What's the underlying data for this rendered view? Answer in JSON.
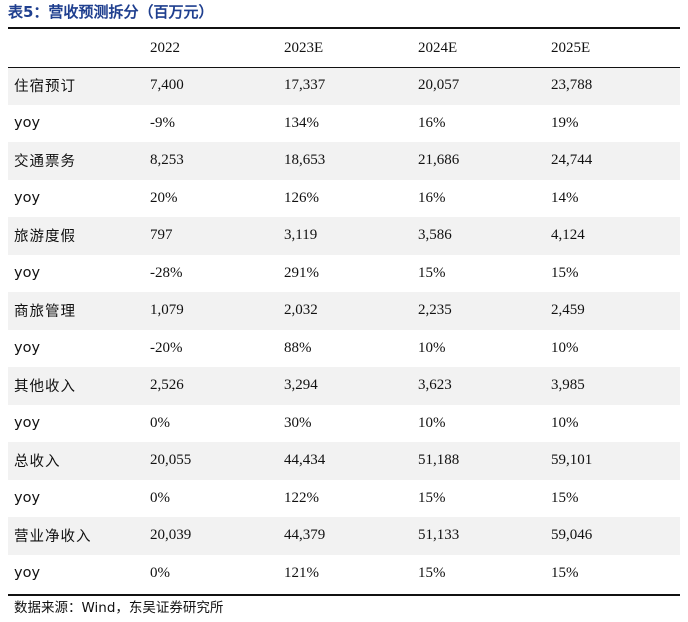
{
  "title": "表5：营收预测拆分（百万元）",
  "header": [
    "",
    "2022",
    "2023E",
    "2024E",
    "2025E"
  ],
  "rows": [
    {
      "label": "住宿预订",
      "values": [
        "7,400",
        "17,337",
        "20,057",
        "23,788"
      ],
      "shaded": true
    },
    {
      "label": "yoy",
      "values": [
        "-9%",
        "134%",
        "16%",
        "19%"
      ],
      "shaded": false
    },
    {
      "label": "交通票务",
      "values": [
        "8,253",
        "18,653",
        "21,686",
        "24,744"
      ],
      "shaded": true
    },
    {
      "label": "yoy",
      "values": [
        "20%",
        "126%",
        "16%",
        "14%"
      ],
      "shaded": false
    },
    {
      "label": "旅游度假",
      "values": [
        "797",
        "3,119",
        "3,586",
        "4,124"
      ],
      "shaded": true
    },
    {
      "label": "yoy",
      "values": [
        "-28%",
        "291%",
        "15%",
        "15%"
      ],
      "shaded": false
    },
    {
      "label": "商旅管理",
      "values": [
        "1,079",
        "2,032",
        "2,235",
        "2,459"
      ],
      "shaded": true
    },
    {
      "label": "yoy",
      "values": [
        "-20%",
        "88%",
        "10%",
        "10%"
      ],
      "shaded": false
    },
    {
      "label": "其他收入",
      "values": [
        "2,526",
        "3,294",
        "3,623",
        "3,985"
      ],
      "shaded": true
    },
    {
      "label": "yoy",
      "values": [
        "0%",
        "30%",
        "10%",
        "10%"
      ],
      "shaded": false
    },
    {
      "label": "总收入",
      "values": [
        "20,055",
        "44,434",
        "51,188",
        "59,101"
      ],
      "shaded": true
    },
    {
      "label": "yoy",
      "values": [
        "0%",
        "122%",
        "15%",
        "15%"
      ],
      "shaded": false
    },
    {
      "label": "营业净收入",
      "values": [
        "20,039",
        "44,379",
        "51,133",
        "59,046"
      ],
      "shaded": true
    },
    {
      "label": "yoy",
      "values": [
        "0%",
        "121%",
        "15%",
        "15%"
      ],
      "shaded": false
    }
  ],
  "source": "数据来源：Wind，东吴证券研究所"
}
